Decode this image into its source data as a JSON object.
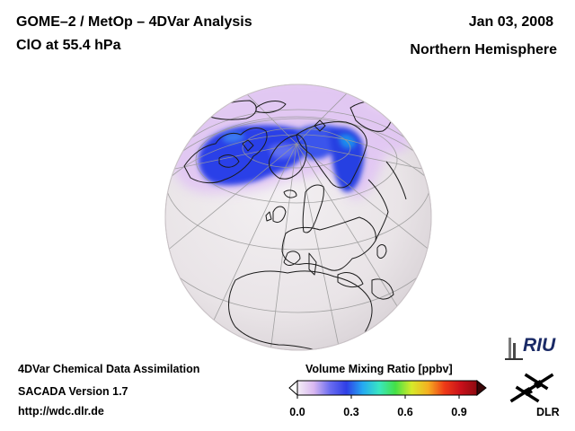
{
  "header": {
    "title": "GOME–2 / MetOp – 4DVar Analysis",
    "subtitle": "ClO at 55.4 hPa",
    "date": "Jan 03, 2008",
    "region": "Northern Hemisphere"
  },
  "footer": {
    "assimilation": "4DVar Chemical Data Assimilation",
    "version": "SACADA Version 1.7",
    "url": "http://wdc.dlr.de"
  },
  "colorbar": {
    "title": "Volume Mixing Ratio [ppbv]",
    "ticks": [
      "0.0",
      "0.3",
      "0.6",
      "0.9"
    ],
    "tick_values": [
      0.0,
      0.3,
      0.6,
      0.9
    ],
    "range": [
      0.0,
      1.0
    ],
    "colors": [
      "#f4eef6",
      "#d9b8f0",
      "#6a6cf0",
      "#2f3fe6",
      "#25a9f2",
      "#39e6c2",
      "#44e046",
      "#d6ea2a",
      "#f5b021",
      "#ef3b17",
      "#c9101a",
      "#8e0a10"
    ]
  },
  "logos": {
    "riu": "RIU",
    "dlr": "DLR"
  },
  "colors": {
    "globe_background": "#ece8ea",
    "coastline": "#1a1a1a",
    "graticule": "#9a9a9a",
    "clo_high": "#2a3fe8",
    "clo_low": "#e0c2f4"
  }
}
